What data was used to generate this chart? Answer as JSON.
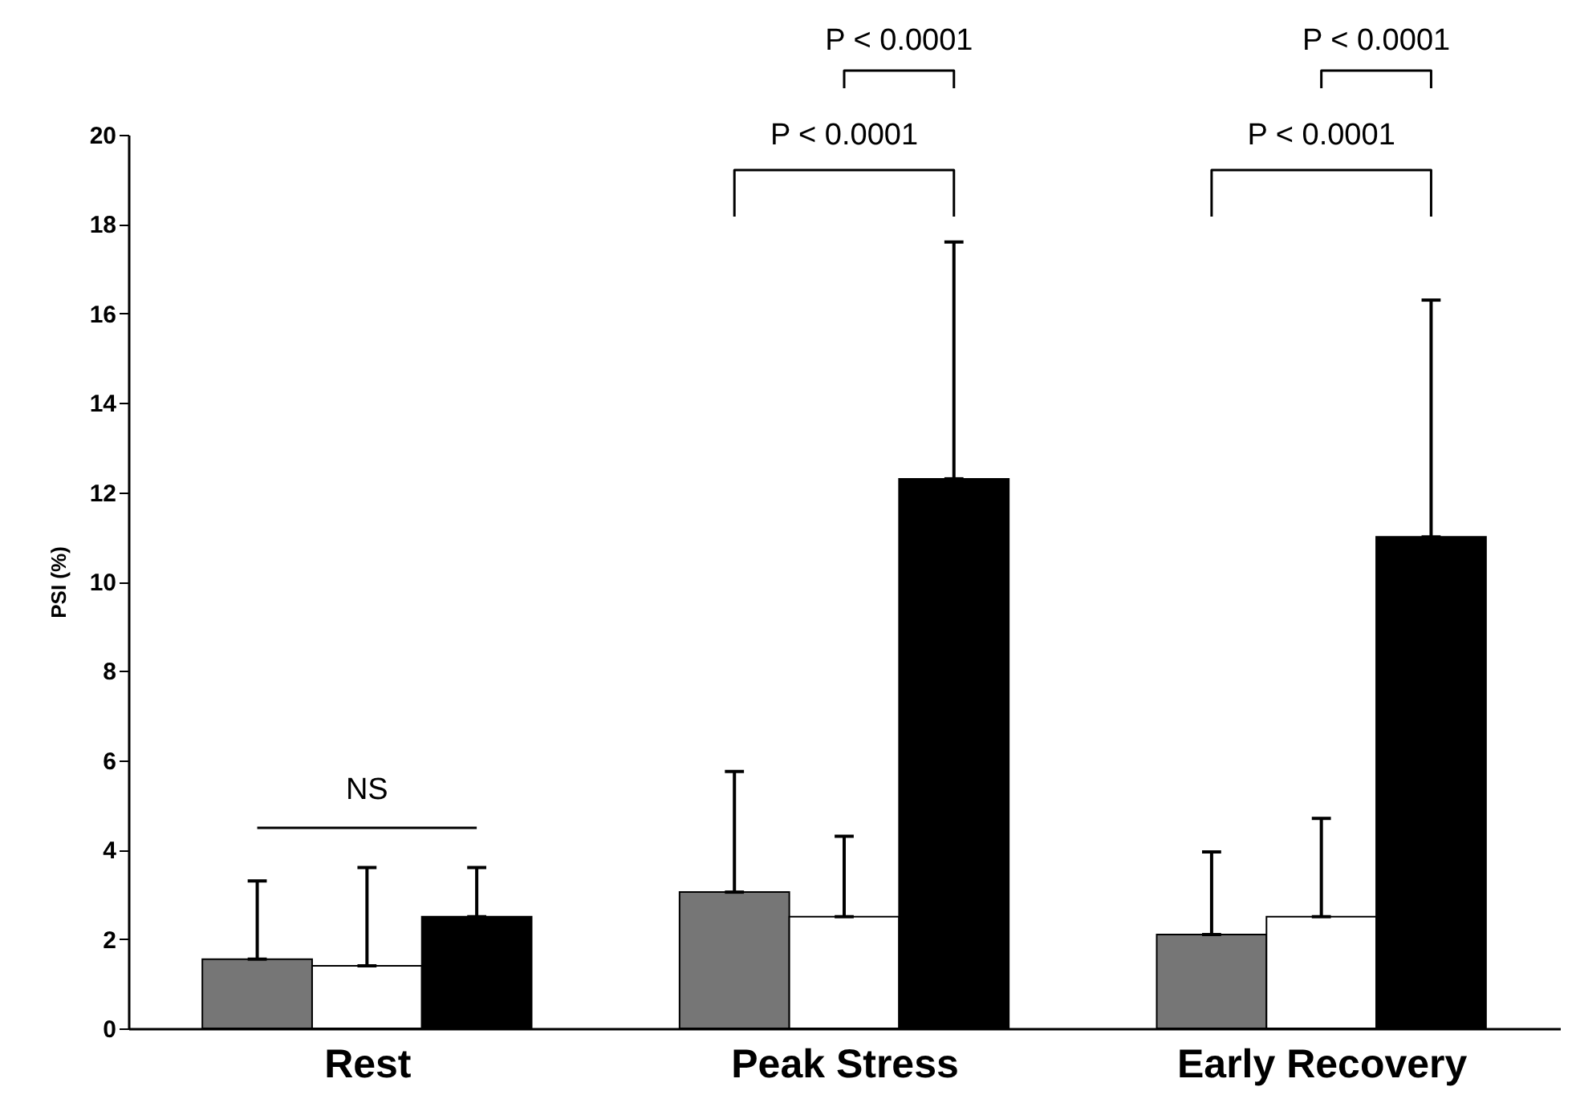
{
  "chart_data": {
    "type": "bar",
    "ylabel": "PSI (%)",
    "categories": [
      "Rest",
      "Peak Stress",
      "Early Recovery"
    ],
    "series": [
      {
        "color": "#767676",
        "values": [
          1.55,
          3.05,
          2.1
        ],
        "errors": [
          [
            1.55,
            3.3
          ],
          [
            3.05,
            5.75
          ],
          [
            2.1,
            3.95
          ]
        ]
      },
      {
        "color": "#ffffff",
        "values": [
          1.4,
          2.5,
          2.5
        ],
        "errors": [
          [
            1.4,
            3.6
          ],
          [
            2.5,
            4.3
          ],
          [
            2.5,
            4.7
          ]
        ]
      },
      {
        "color": "#000000",
        "values": [
          2.5,
          12.3,
          11.0
        ],
        "errors": [
          [
            2.5,
            3.6
          ],
          [
            12.3,
            17.6
          ],
          [
            11.0,
            16.3
          ]
        ]
      }
    ],
    "ylim": [
      0,
      20
    ],
    "yticks": [
      0,
      2,
      4,
      6,
      8,
      10,
      12,
      14,
      16,
      18,
      20
    ],
    "grid": false,
    "legend": false,
    "annotations": [
      "NS",
      "P < 0.0001",
      "P < 0.0001",
      "P < 0.0001",
      "P < 0.0001"
    ]
  }
}
